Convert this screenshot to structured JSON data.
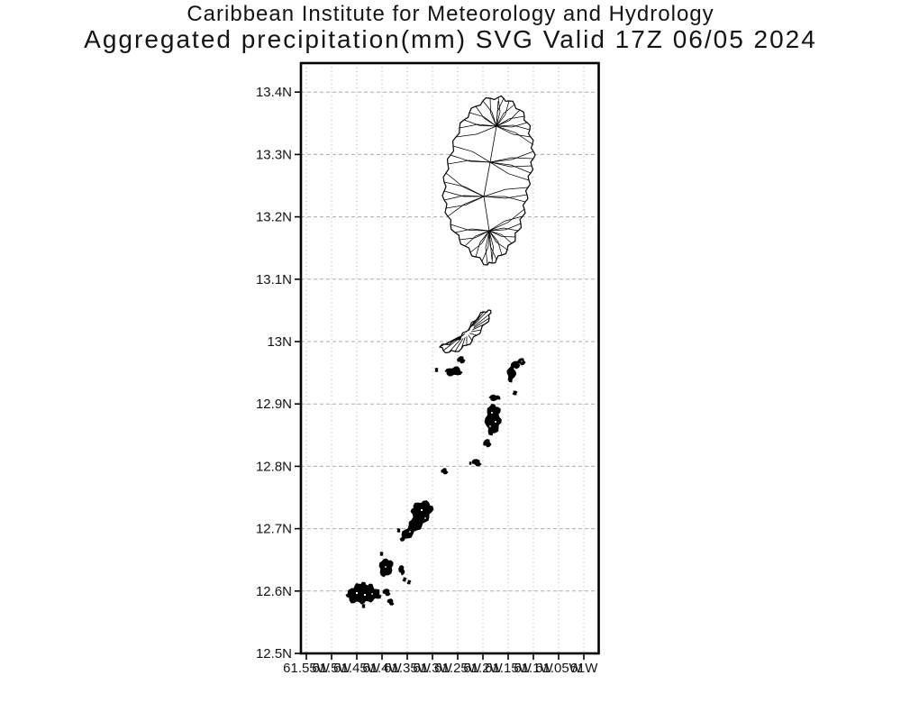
{
  "titles": {
    "line1": "Caribbean Institute for Meteorology and Hydrology",
    "line2": "Aggregated precipitation(mm) SVG Valid 17Z 06/05 2024"
  },
  "map": {
    "region": "Saint Vincent and the Grenadines",
    "y_axis": {
      "ticks": [
        {
          "label": "13.4N",
          "lat": 13.4
        },
        {
          "label": "13.3N",
          "lat": 13.3
        },
        {
          "label": "13.2N",
          "lat": 13.2
        },
        {
          "label": "13.1N",
          "lat": 13.1
        },
        {
          "label": "13N",
          "lat": 13.0
        },
        {
          "label": "12.9N",
          "lat": 12.9
        },
        {
          "label": "12.8N",
          "lat": 12.8
        },
        {
          "label": "12.7N",
          "lat": 12.7
        },
        {
          "label": "12.6N",
          "lat": 12.6
        },
        {
          "label": "12.5N",
          "lat": 12.5
        }
      ]
    },
    "x_axis": {
      "ticks": [
        {
          "label": "61.55W",
          "lon": 61.55
        },
        {
          "label": "61.5W",
          "lon": 61.5
        },
        {
          "label": "61.45W",
          "lon": 61.45
        },
        {
          "label": "61.4W",
          "lon": 61.4
        },
        {
          "label": "61.35W",
          "lon": 61.35
        },
        {
          "label": "61.3W",
          "lon": 61.3
        },
        {
          "label": "61.25W",
          "lon": 61.25
        },
        {
          "label": "61.2W",
          "lon": 61.2
        },
        {
          "label": "61.15W",
          "lon": 61.15
        },
        {
          "label": "61.1W",
          "lon": 61.1
        },
        {
          "label": "61.05W",
          "lon": 61.05
        },
        {
          "label": "61W",
          "lon": 61.0
        }
      ]
    },
    "colors": {
      "background": "#ffffff",
      "frame": "#000000",
      "grid_line": "#ababab",
      "coastline": "#000000",
      "text": "#141414"
    }
  }
}
